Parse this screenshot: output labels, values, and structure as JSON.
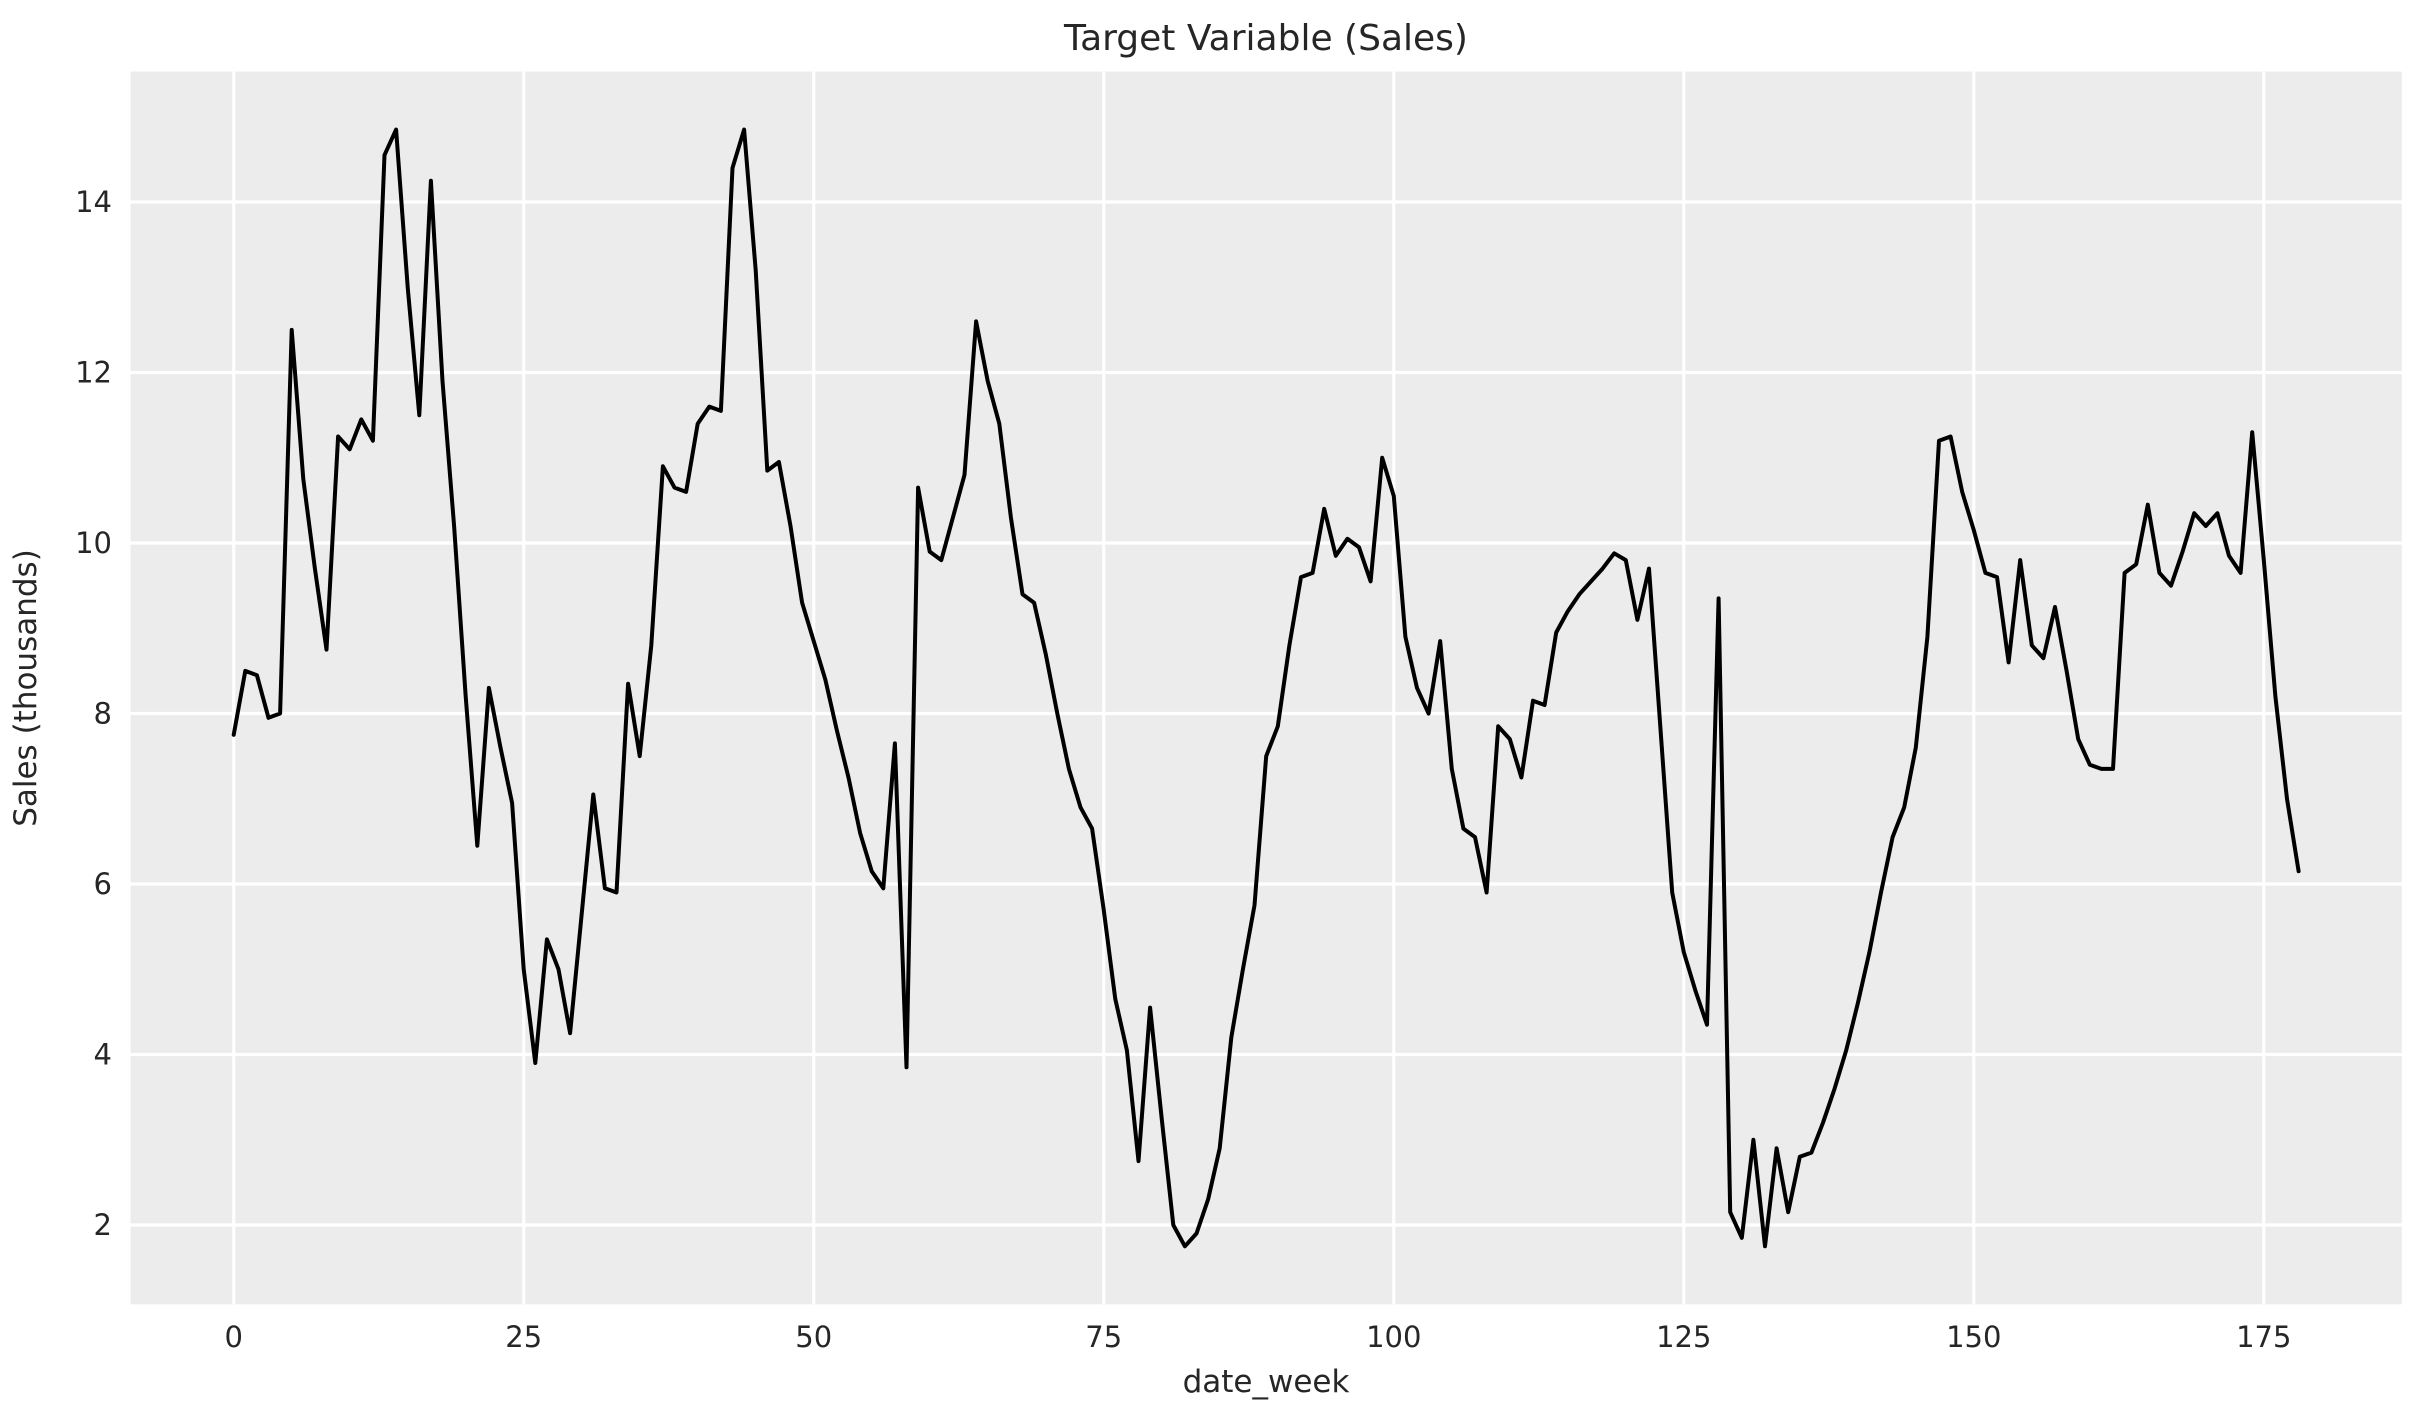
{
  "figure": {
    "title": "Target Variable (Sales)",
    "xlabel": "date_week",
    "ylabel": "Sales (thousands)"
  },
  "colors": {
    "figure_bg": "#ffffff",
    "axes_bg": "#ececec",
    "grid": "#ffffff",
    "line": "#000000",
    "text": "#262626"
  },
  "chart_data": {
    "type": "line",
    "title": "Target Variable (Sales)",
    "xlabel": "date_week",
    "ylabel": "Sales (thousands)",
    "legend_position": "none",
    "grid": true,
    "x_start": 0,
    "x_step": 1,
    "x_ticks": [
      0,
      25,
      50,
      75,
      100,
      125,
      150,
      175
    ],
    "y_ticks": [
      2,
      4,
      6,
      8,
      10,
      12,
      14
    ],
    "xlim": [
      -8.9,
      186.9
    ],
    "ylim": [
      1.07,
      15.53
    ],
    "series": [
      {
        "name": "Sales",
        "color": "#000000",
        "values": [
          7.75,
          8.5,
          8.45,
          7.95,
          8.0,
          12.5,
          10.75,
          9.7,
          8.75,
          11.25,
          11.1,
          11.45,
          11.2,
          14.55,
          14.85,
          13.0,
          11.5,
          14.25,
          11.9,
          10.2,
          8.2,
          6.45,
          8.3,
          7.6,
          6.95,
          5.0,
          3.9,
          5.35,
          5.0,
          4.25,
          5.65,
          7.05,
          5.95,
          5.9,
          8.35,
          7.5,
          8.8,
          10.9,
          10.65,
          10.6,
          11.4,
          11.6,
          11.55,
          14.4,
          14.85,
          13.2,
          10.85,
          10.95,
          10.2,
          9.3,
          8.85,
          8.4,
          7.8,
          7.25,
          6.6,
          6.15,
          5.95,
          7.65,
          3.85,
          10.65,
          9.9,
          9.8,
          10.3,
          10.8,
          12.6,
          11.9,
          11.4,
          10.3,
          9.4,
          9.3,
          8.7,
          8.0,
          7.35,
          6.9,
          6.65,
          5.7,
          4.65,
          4.05,
          2.75,
          4.55,
          3.25,
          2.0,
          1.75,
          1.9,
          2.3,
          2.9,
          4.2,
          5.0,
          5.75,
          7.5,
          7.85,
          8.8,
          9.6,
          9.65,
          10.4,
          9.85,
          10.05,
          9.95,
          9.55,
          11.0,
          10.55,
          8.9,
          8.3,
          8.0,
          8.85,
          7.35,
          6.65,
          6.55,
          5.9,
          7.85,
          7.7,
          7.25,
          8.15,
          8.1,
          8.95,
          9.2,
          9.4,
          9.55,
          9.7,
          9.88,
          9.8,
          9.1,
          9.7,
          7.8,
          5.9,
          5.2,
          4.75,
          4.35,
          9.35,
          2.15,
          1.85,
          3.0,
          1.75,
          2.9,
          2.15,
          2.8,
          2.85,
          3.2,
          3.6,
          4.05,
          4.6,
          5.2,
          5.9,
          6.55,
          6.9,
          7.6,
          8.9,
          11.2,
          11.25,
          10.6,
          10.15,
          9.65,
          9.6,
          8.6,
          9.8,
          8.8,
          8.65,
          9.25,
          8.5,
          7.7,
          7.4,
          7.35,
          7.35,
          9.65,
          9.75,
          10.45,
          9.65,
          9.5,
          9.9,
          10.35,
          10.2,
          10.35,
          9.85,
          9.65,
          11.3,
          9.8,
          8.2,
          7.0,
          6.15
        ]
      }
    ]
  }
}
